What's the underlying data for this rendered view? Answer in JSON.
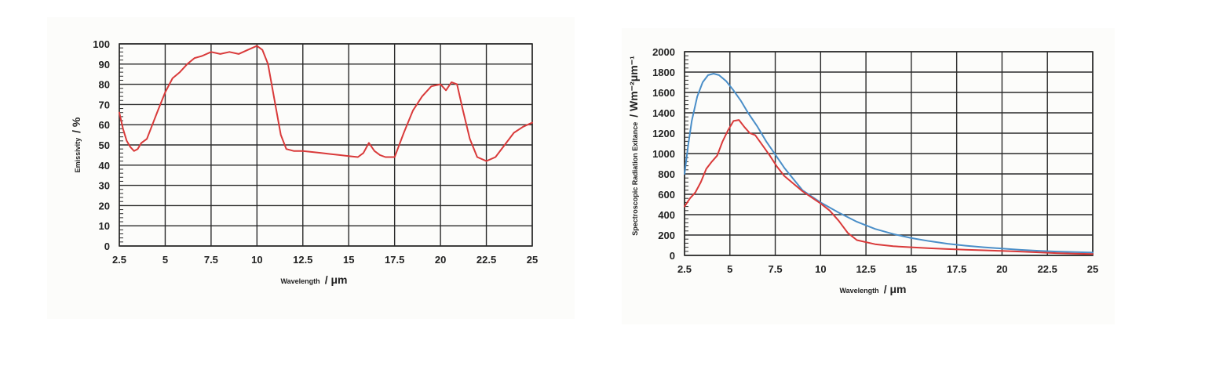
{
  "chart_data": [
    {
      "type": "line",
      "xlabel": "Wavelength",
      "xunit": "/ μm",
      "ylabel": "Emissivity",
      "yunit": "/ %",
      "xlim": [
        2.5,
        25
      ],
      "ylim": [
        0,
        100
      ],
      "x_ticks": [
        "2.5",
        "5",
        "7.5",
        "10",
        "12.5",
        "15",
        "17.5",
        "20",
        "22.5",
        "25"
      ],
      "y_ticks": [
        "0",
        "10",
        "20",
        "30",
        "40",
        "50",
        "60",
        "70",
        "80",
        "90",
        "100"
      ],
      "grid": true,
      "series": [
        {
          "color": "#d93a3a",
          "x": [
            2.5,
            2.7,
            2.9,
            3.1,
            3.3,
            3.5,
            3.7,
            4.0,
            4.3,
            4.6,
            5.0,
            5.4,
            5.8,
            6.2,
            6.6,
            7.0,
            7.5,
            8.0,
            8.5,
            9.0,
            9.5,
            10.0,
            10.3,
            10.6,
            11.0,
            11.3,
            11.6,
            12.0,
            12.5,
            13.0,
            13.5,
            14.0,
            14.5,
            15.0,
            15.5,
            15.8,
            16.1,
            16.4,
            16.7,
            17.0,
            17.5,
            18.0,
            18.5,
            19.0,
            19.5,
            20.0,
            20.3,
            20.6,
            20.9,
            21.2,
            21.6,
            22.0,
            22.5,
            23.0,
            23.5,
            24.0,
            24.5,
            25.0
          ],
          "y": [
            66,
            58,
            52,
            49,
            47,
            48,
            51,
            53,
            60,
            67,
            76,
            83,
            86,
            90,
            93,
            94,
            96,
            95,
            96,
            95,
            97,
            99,
            97,
            90,
            70,
            55,
            48,
            47,
            47,
            46.5,
            46,
            45.5,
            45,
            44.5,
            44,
            46,
            51,
            47,
            45,
            44,
            44,
            56,
            67,
            74,
            79,
            80,
            77,
            81,
            80,
            68,
            53,
            44,
            42,
            44,
            50,
            56,
            59,
            61
          ]
        }
      ]
    },
    {
      "type": "line",
      "xlabel": "Wavelength",
      "xunit": "/ μm",
      "ylabel": "Spectroscopic Radiation Exitance",
      "yunit": "/ Wm⁻²μm⁻¹",
      "xlim": [
        2.5,
        25
      ],
      "ylim": [
        0,
        2000
      ],
      "x_ticks": [
        "2.5",
        "5",
        "7.5",
        "10",
        "12.5",
        "15",
        "17.5",
        "20",
        "22.5",
        "25"
      ],
      "y_ticks": [
        "0",
        "200",
        "400",
        "600",
        "800",
        "1000",
        "1200",
        "1400",
        "1600",
        "1800",
        "2000"
      ],
      "grid": true,
      "series": [
        {
          "color": "#4a8ec8",
          "x": [
            2.5,
            2.7,
            2.9,
            3.2,
            3.5,
            3.8,
            4.1,
            4.4,
            4.8,
            5.2,
            5.6,
            6.0,
            6.5,
            7.0,
            7.5,
            8.0,
            9.0,
            10.0,
            11.0,
            12.0,
            13.0,
            14.0,
            15.0,
            16.0,
            17.0,
            18.0,
            19.0,
            20.0,
            21.0,
            22.0,
            23.0,
            24.0,
            25.0
          ],
          "y": [
            800,
            1080,
            1320,
            1560,
            1700,
            1770,
            1785,
            1770,
            1710,
            1620,
            1520,
            1400,
            1270,
            1120,
            990,
            860,
            640,
            520,
            420,
            330,
            260,
            210,
            170,
            140,
            115,
            95,
            80,
            68,
            55,
            45,
            38,
            32,
            28
          ]
        },
        {
          "color": "#d93a3a",
          "x": [
            2.5,
            2.8,
            3.1,
            3.4,
            3.7,
            4.0,
            4.3,
            4.6,
            4.9,
            5.2,
            5.5,
            5.8,
            6.1,
            6.4,
            6.8,
            7.2,
            7.6,
            8.0,
            9.0,
            10.0,
            10.5,
            11.0,
            11.5,
            12.0,
            13.0,
            14.0,
            15.0,
            16.0,
            17.0,
            18.0,
            19.0,
            20.0,
            21.0,
            22.0,
            23.0,
            24.0,
            25.0
          ],
          "y": [
            480,
            560,
            620,
            720,
            850,
            920,
            980,
            1120,
            1230,
            1320,
            1330,
            1260,
            1200,
            1180,
            1080,
            980,
            870,
            780,
            630,
            510,
            440,
            340,
            220,
            150,
            110,
            90,
            80,
            70,
            62,
            56,
            50,
            44,
            38,
            30,
            22,
            18,
            14
          ]
        }
      ]
    }
  ]
}
